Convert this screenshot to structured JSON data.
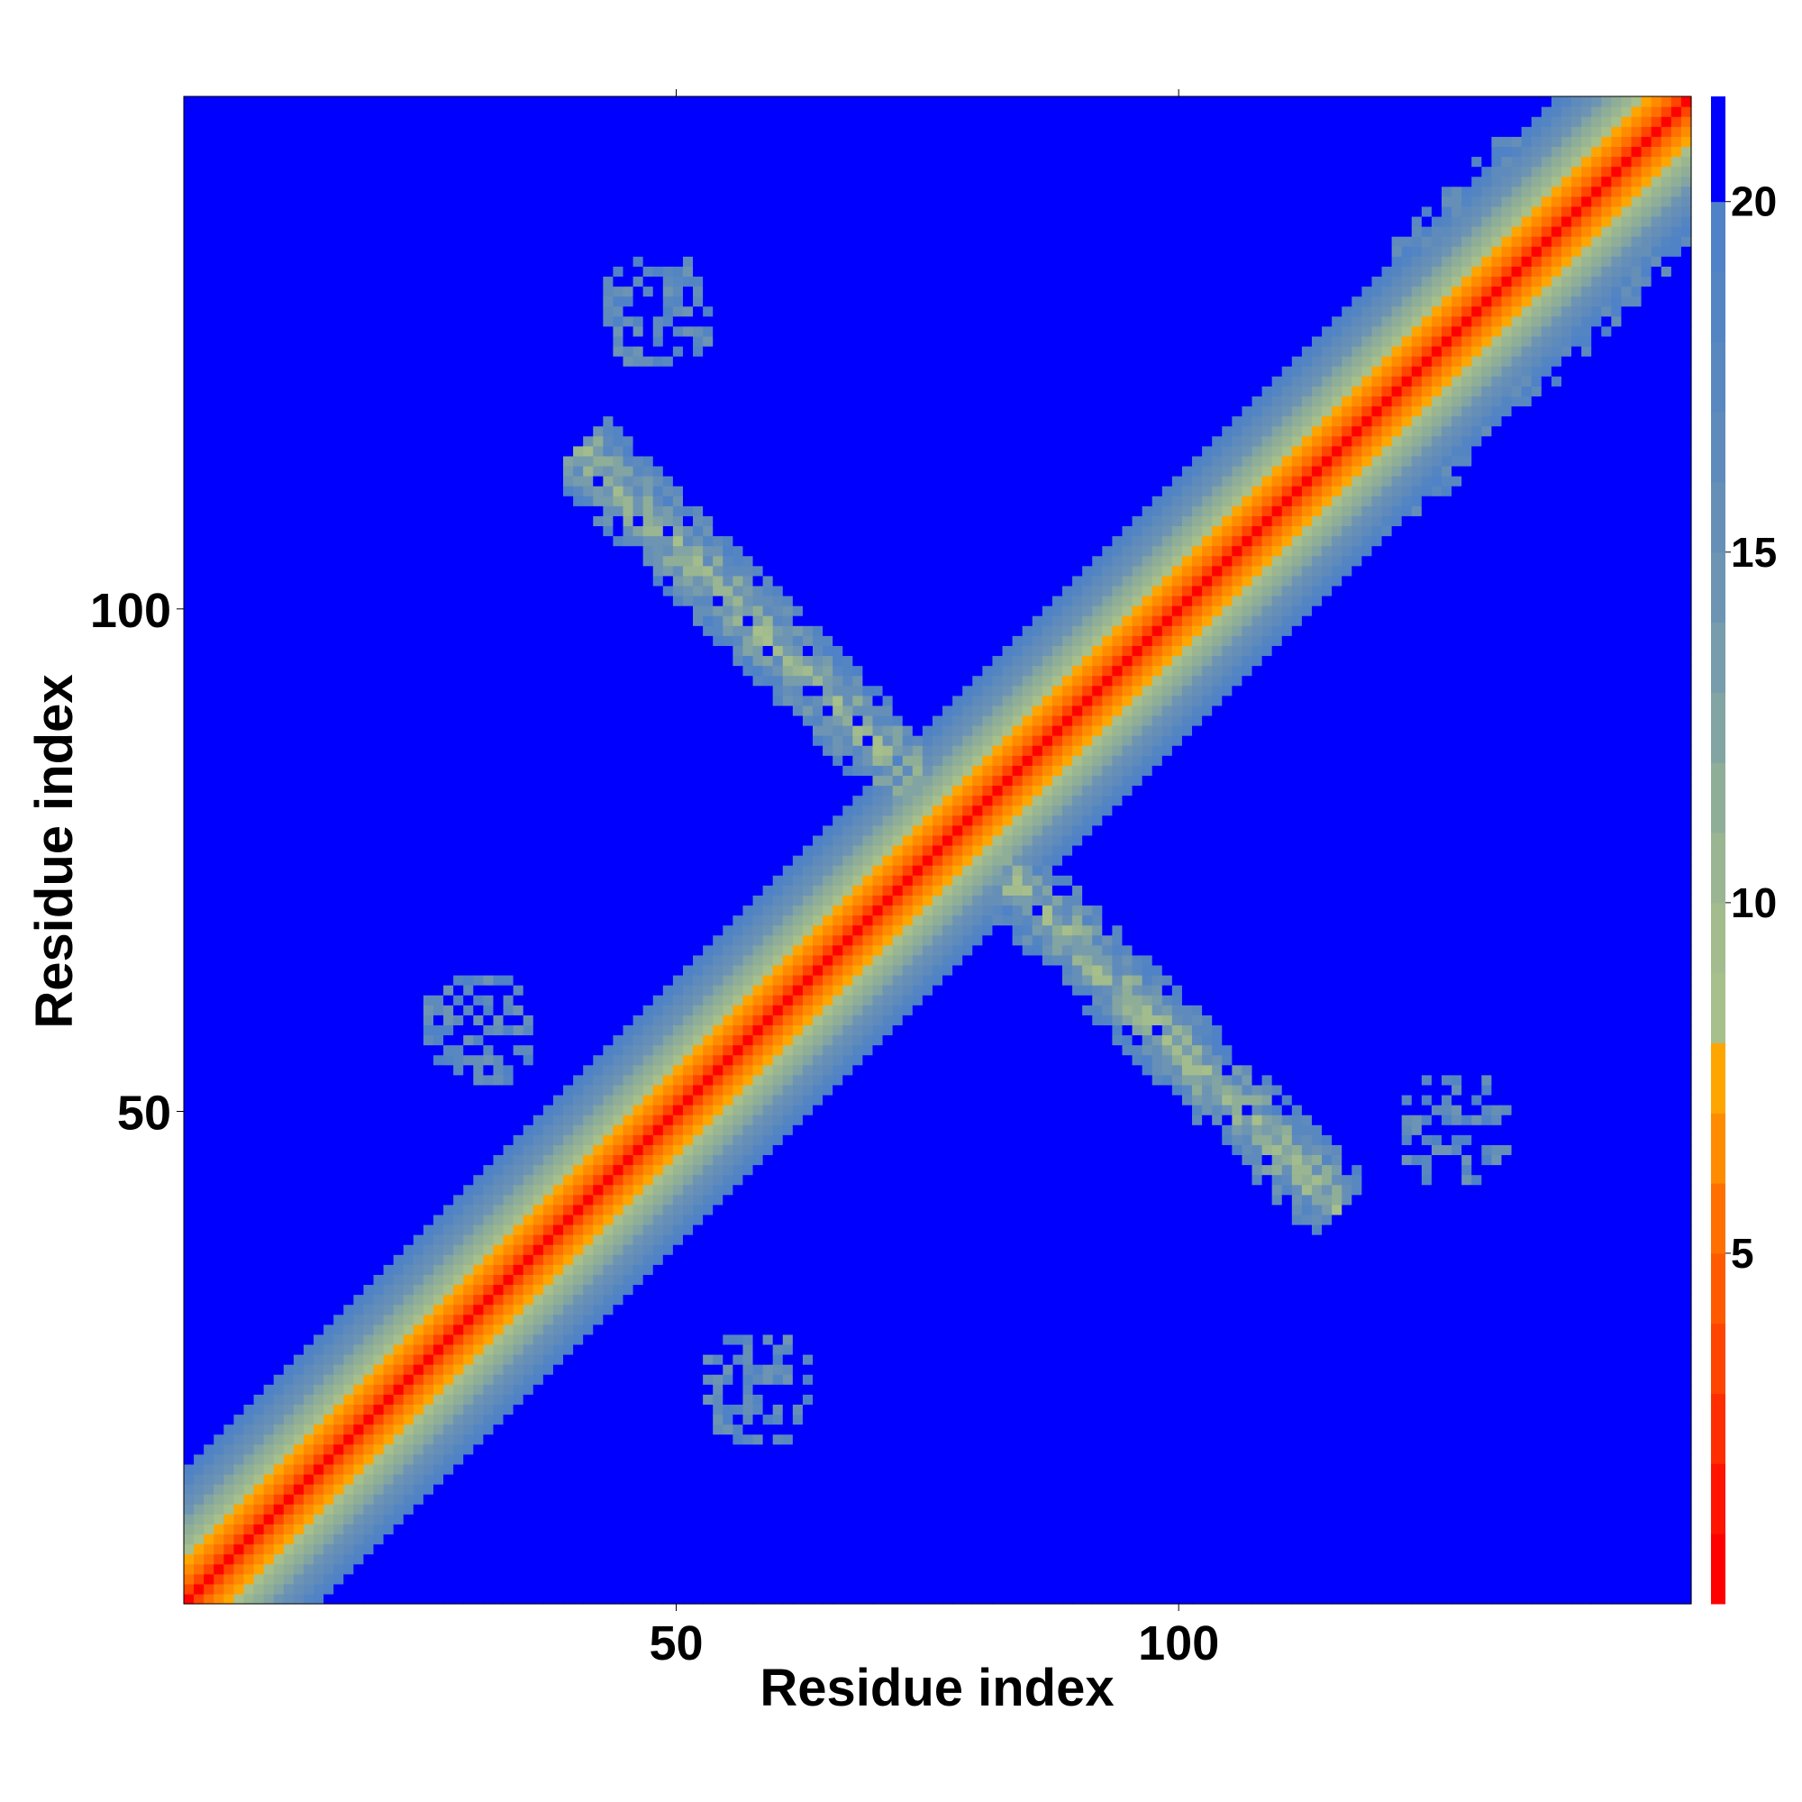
{
  "chart_data": {
    "type": "heatmap",
    "title": "",
    "xlabel": "Residue index",
    "ylabel": "Residue index",
    "n_residues": 151,
    "xlim": [
      1,
      151
    ],
    "ylim": [
      1,
      151
    ],
    "x_ticks": [
      50,
      100
    ],
    "y_ticks": [
      50,
      100
    ],
    "colorbar": {
      "ticks": [
        5,
        10,
        15,
        20
      ],
      "range": [
        0,
        21.5
      ],
      "levels": [
        {
          "max": 1,
          "color": "#ff0000"
        },
        {
          "max": 2,
          "color": "#ff1400"
        },
        {
          "max": 3,
          "color": "#ff2e00"
        },
        {
          "max": 4,
          "color": "#ff4500"
        },
        {
          "max": 5,
          "color": "#ff5a00"
        },
        {
          "max": 6,
          "color": "#ff7000"
        },
        {
          "max": 7,
          "color": "#ff8c00"
        },
        {
          "max": 8,
          "color": "#ffa500"
        },
        {
          "max": 9,
          "color": "#a7bf8a"
        },
        {
          "max": 10,
          "color": "#a2bc8e"
        },
        {
          "max": 11,
          "color": "#99b592"
        },
        {
          "max": 12,
          "color": "#8fae98"
        },
        {
          "max": 13,
          "color": "#82a4a2"
        },
        {
          "max": 14,
          "color": "#779cab"
        },
        {
          "max": 15,
          "color": "#6d94b3"
        },
        {
          "max": 16,
          "color": "#668fb8"
        },
        {
          "max": 17,
          "color": "#5f8bbc"
        },
        {
          "max": 18,
          "color": "#5988c0"
        },
        {
          "max": 19,
          "color": "#5485c3"
        },
        {
          "max": 20,
          "color": "#4f82c6"
        },
        {
          "max": 21.5,
          "color": "#0000ff"
        }
      ]
    },
    "description_regions": {
      "diagonal_band": "distance grows with |i-j|: red near diagonal, orange, then gray-green, then blue",
      "antiparallel_contacts": "cross-diagonal band of contacts from about (43,112) to (117,44), gray-blue with orange spots, symmetric",
      "small_clusters": [
        [
          48,
          130
        ],
        [
          128,
          48
        ],
        [
          58,
          22
        ],
        [
          30,
          58
        ]
      ]
    }
  }
}
